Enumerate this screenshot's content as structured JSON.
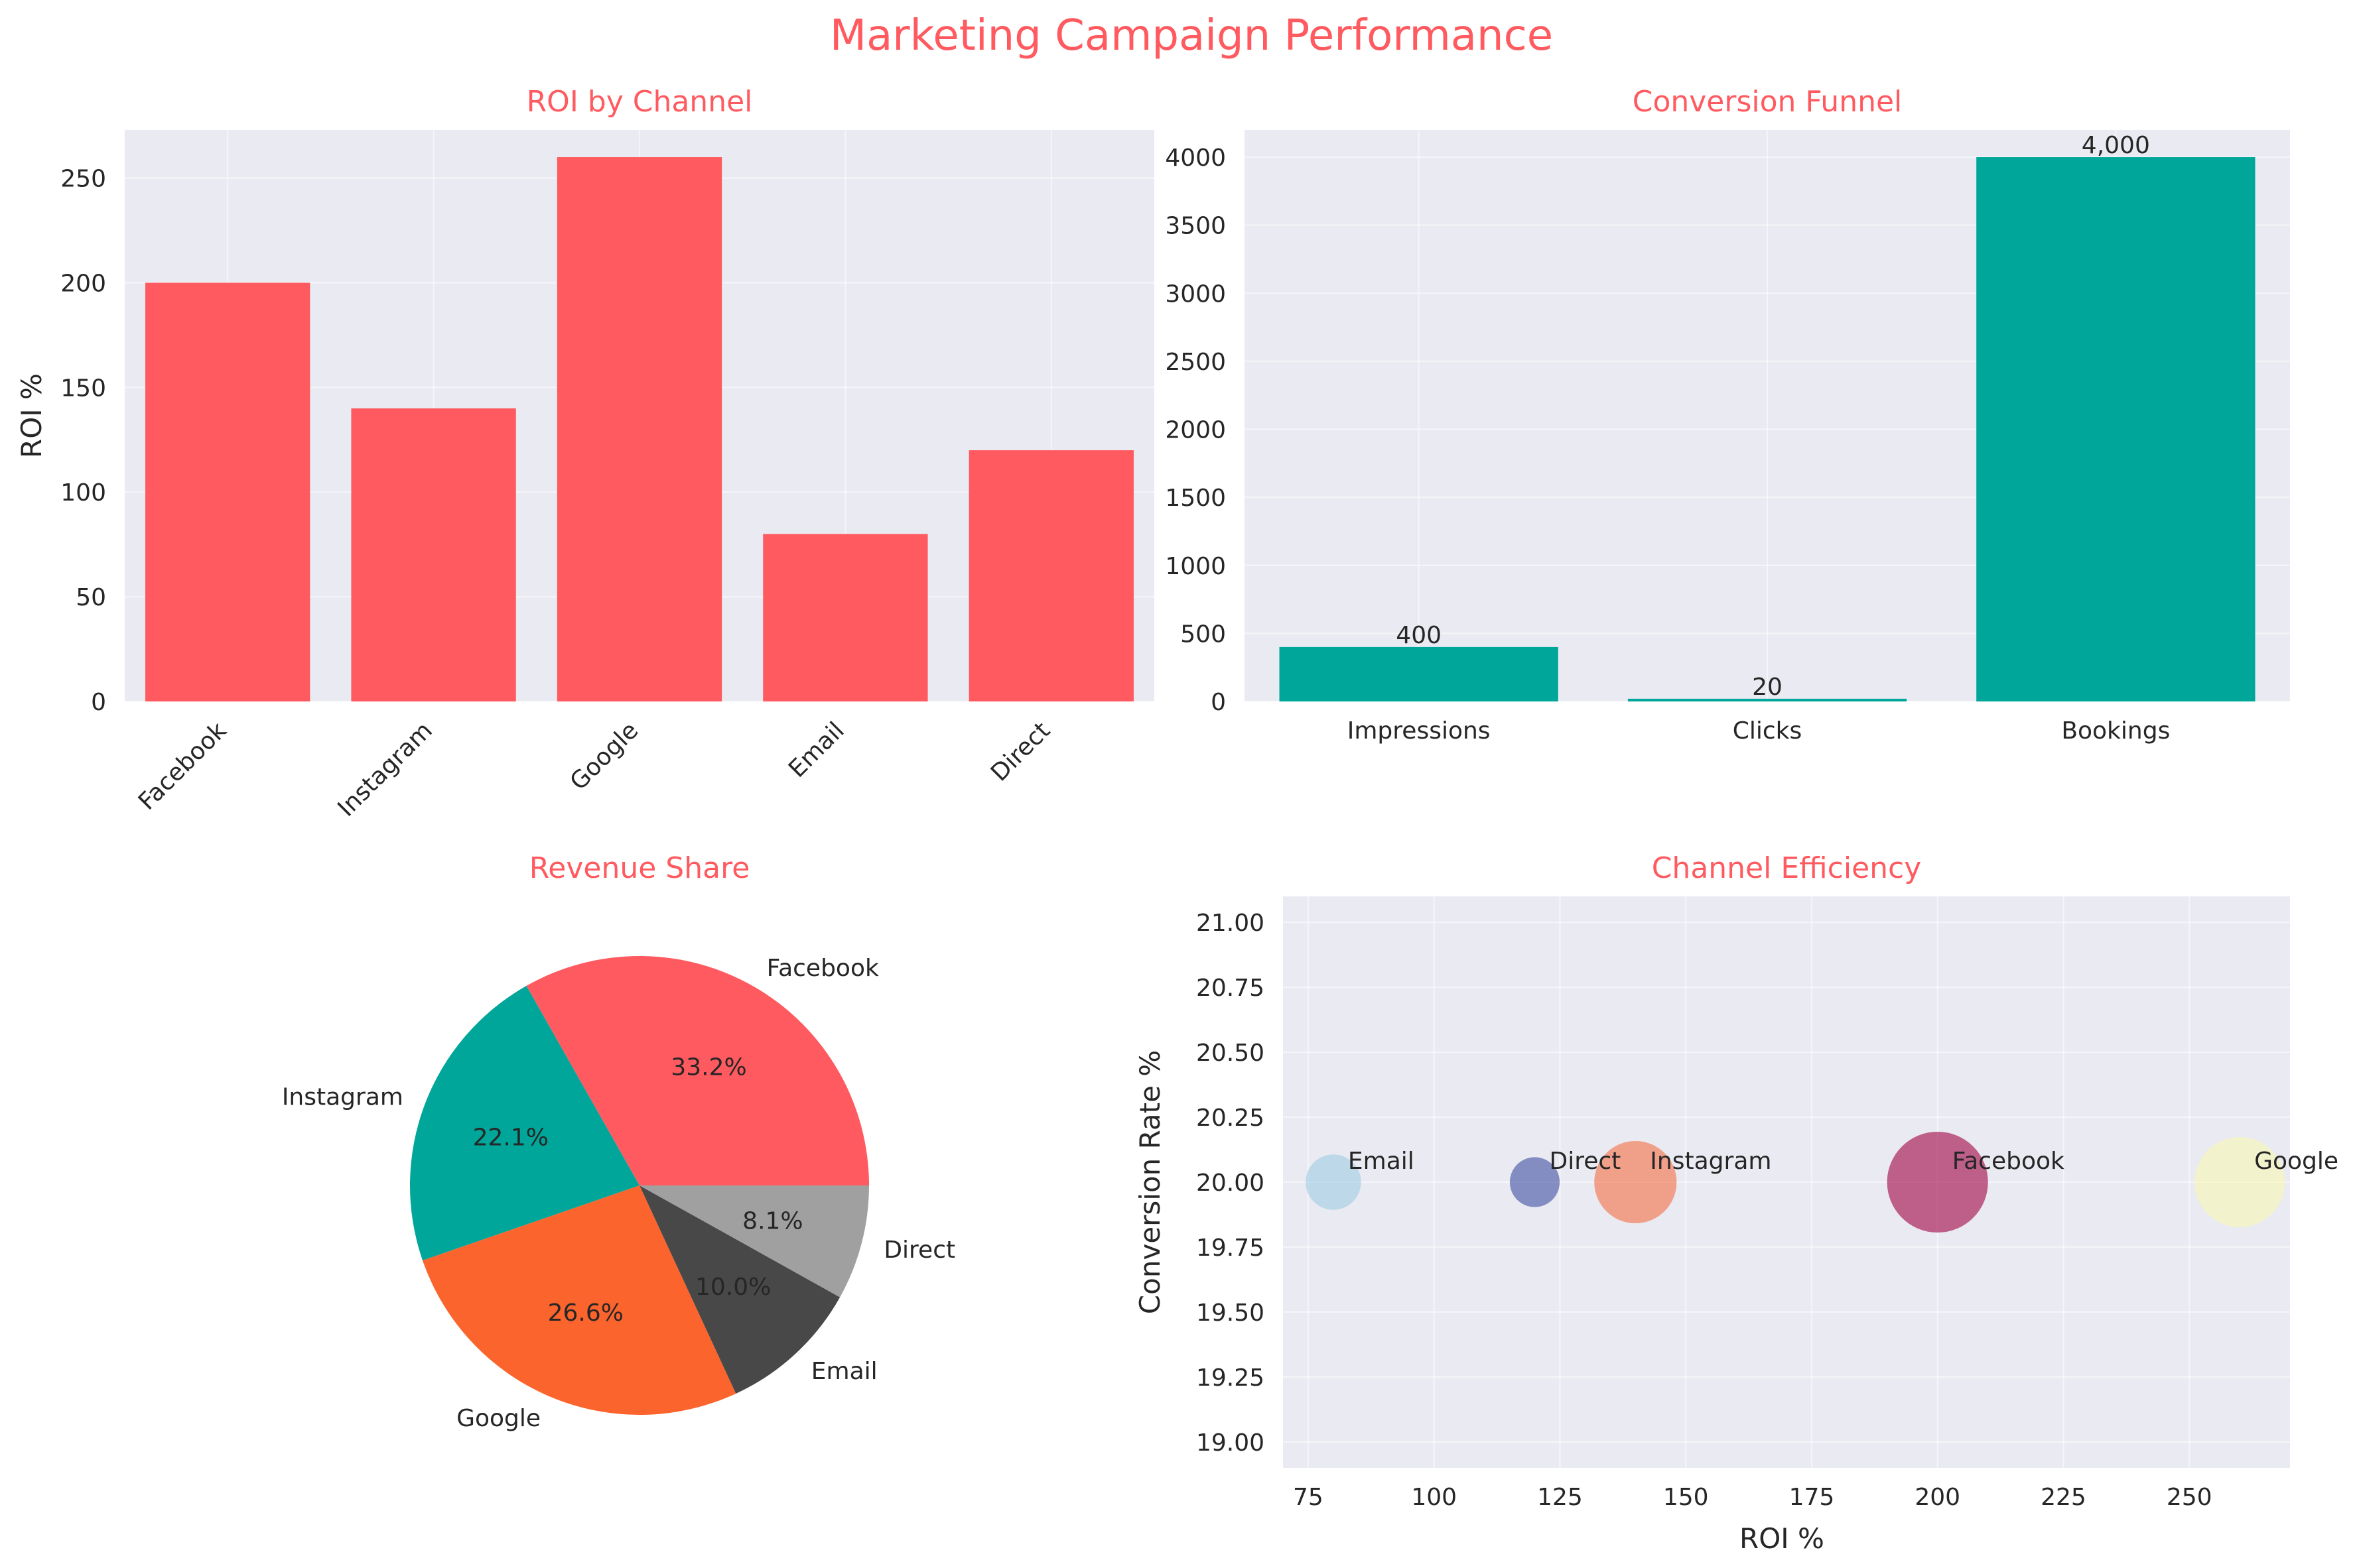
{
  "title": "Marketing Campaign Performance",
  "colors": {
    "brand": "#FF5A5F",
    "teal": "#00A699",
    "orange": "#FC642D",
    "dark": "#484848",
    "gray": "#A0A0A0",
    "panel_bg": "#EAEAF2"
  },
  "chart_data": [
    {
      "type": "bar",
      "title": "ROI by Channel",
      "ylabel": "ROI %",
      "xlabel": "",
      "categories": [
        "Facebook",
        "Instagram",
        "Google",
        "Email",
        "Direct"
      ],
      "values": [
        200,
        140,
        260,
        80,
        120
      ],
      "ylim": [
        0,
        273
      ],
      "yticks": [
        0,
        50,
        100,
        150,
        200,
        250
      ],
      "color": "#FF5A5F",
      "grid": true
    },
    {
      "type": "bar",
      "title": "Conversion Funnel",
      "xlabel": "",
      "ylabel": "",
      "categories": [
        "Impressions",
        "Clicks",
        "Bookings"
      ],
      "values": [
        400,
        20,
        4000
      ],
      "data_labels": [
        "400",
        "20",
        "4,000"
      ],
      "ylim": [
        0,
        4200
      ],
      "yticks": [
        0,
        500,
        1000,
        1500,
        2000,
        2500,
        3000,
        3500,
        4000
      ],
      "color": "#00A699",
      "grid": true
    },
    {
      "type": "pie",
      "title": "Revenue Share",
      "labels": [
        "Facebook",
        "Instagram",
        "Google",
        "Email",
        "Direct"
      ],
      "values": [
        33.2,
        22.1,
        26.6,
        10.0,
        8.1
      ],
      "pct_labels": [
        "33.2%",
        "22.1%",
        "26.6%",
        "10.0%",
        "8.1%"
      ],
      "colors": [
        "#FF5A5F",
        "#00A699",
        "#FC642D",
        "#484848",
        "#A0A0A0"
      ]
    },
    {
      "type": "scatter",
      "title": "Channel Efficiency",
      "xlabel": "ROI %",
      "ylabel": "Conversion Rate %",
      "xlim": [
        70,
        270
      ],
      "ylim": [
        18.9,
        21.1
      ],
      "xticks": [
        75,
        100,
        125,
        150,
        175,
        200,
        225,
        250
      ],
      "yticks": [
        19.0,
        19.25,
        19.5,
        19.75,
        20.0,
        20.25,
        20.5,
        20.75,
        21.0
      ],
      "ytick_labels": [
        "19.00",
        "19.25",
        "19.50",
        "19.75",
        "20.00",
        "20.25",
        "20.50",
        "20.75",
        "21.00"
      ],
      "points": [
        {
          "label": "Facebook",
          "x": 200,
          "y": 20.0,
          "revenue_share": 33.2,
          "color": "#9E0142"
        },
        {
          "label": "Instagram",
          "x": 140,
          "y": 20.0,
          "revenue_share": 22.1,
          "color": "#F46D43"
        },
        {
          "label": "Google",
          "x": 260,
          "y": 20.0,
          "revenue_share": 26.6,
          "color": "#F6F9B3"
        },
        {
          "label": "Email",
          "x": 80,
          "y": 20.0,
          "revenue_share": 10.0,
          "color": "#9FCBE2"
        },
        {
          "label": "Direct",
          "x": 120,
          "y": 20.0,
          "revenue_share": 8.1,
          "color": "#3E4FA0"
        }
      ],
      "grid": true
    }
  ]
}
